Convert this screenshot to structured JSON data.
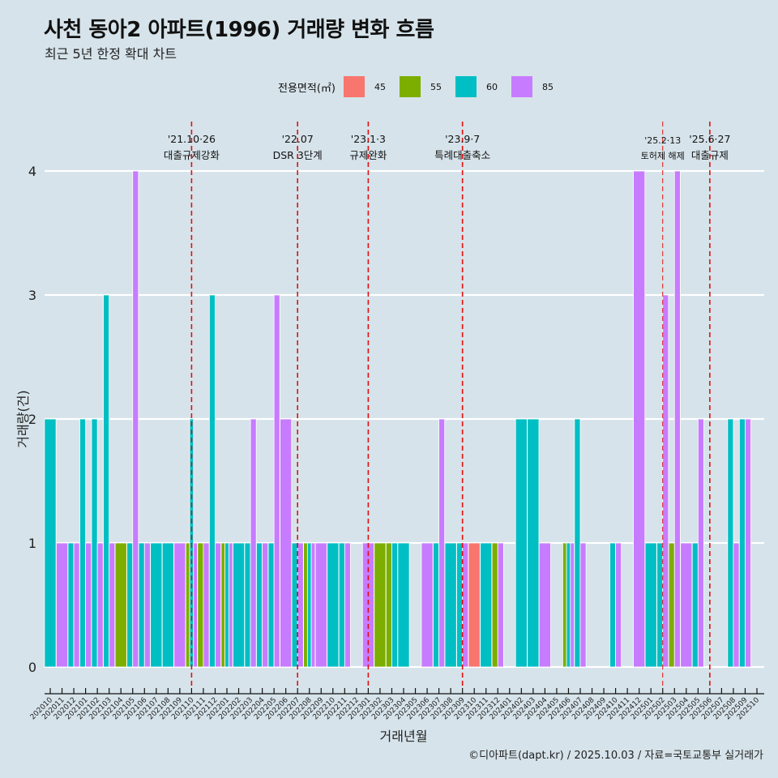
{
  "header": {
    "title": "사천 동아2 아파트(1996) 거래량 변화 흐름",
    "subtitle": "최근 5년 한정 확대 차트"
  },
  "legend": {
    "title": "전용면적(㎡)",
    "items": [
      {
        "label": "45",
        "color": "#F8766D"
      },
      {
        "label": "55",
        "color": "#7CAE00"
      },
      {
        "label": "60",
        "color": "#00BFC4"
      },
      {
        "label": "85",
        "color": "#C77CFF"
      }
    ]
  },
  "footer": "©디아파트(dapt.kr) / 2025.10.03 / 자료=국토교통부 실거래가",
  "chart_data": {
    "type": "bar",
    "position": "dodge",
    "title": "사천 동아2 아파트(1996) 거래량 변화 흐름",
    "subtitle": "최근 5년 한정 확대 차트",
    "xlabel": "거래년월",
    "ylabel": "거래량(건)",
    "ylim": [
      0,
      4
    ],
    "yticks": [
      0,
      1,
      2,
      3,
      4
    ],
    "grid": "horizontal major",
    "legend_position": "top",
    "legend_title": "전용면적(㎡)",
    "categories": [
      "202010",
      "202011",
      "202012",
      "202101",
      "202102",
      "202103",
      "202104",
      "202105",
      "202106",
      "202107",
      "202108",
      "202109",
      "202110",
      "202111",
      "202112",
      "202201",
      "202202",
      "202203",
      "202204",
      "202205",
      "202206",
      "202207",
      "202208",
      "202209",
      "202210",
      "202211",
      "202212",
      "202301",
      "202302",
      "202303",
      "202304",
      "202305",
      "202306",
      "202307",
      "202308",
      "202309",
      "202310",
      "202311",
      "202312",
      "202401",
      "202402",
      "202403",
      "202404",
      "202405",
      "202406",
      "202407",
      "202408",
      "202409",
      "202410",
      "202411",
      "202412",
      "202501",
      "202502",
      "202503",
      "202504",
      "202505",
      "202506",
      "202507",
      "202508",
      "202509",
      "202510"
    ],
    "series": [
      {
        "name": "45",
        "values": [
          0,
          0,
          0,
          0,
          0,
          0,
          0,
          0,
          0,
          0,
          0,
          0,
          0,
          0,
          0,
          0,
          0,
          0,
          0,
          0,
          0,
          0,
          0,
          0,
          0,
          0,
          0,
          0,
          0,
          0,
          0,
          0,
          0,
          0,
          0,
          0,
          1,
          0,
          0,
          0,
          0,
          0,
          0,
          0,
          0,
          0,
          0,
          0,
          0,
          0,
          0,
          0,
          0,
          0,
          0,
          0,
          0,
          0,
          0,
          0,
          0
        ]
      },
      {
        "name": "55",
        "values": [
          0,
          0,
          0,
          0,
          0,
          0,
          1,
          0,
          0,
          0,
          0,
          0,
          1,
          1,
          0,
          1,
          0,
          0,
          0,
          0,
          0,
          0,
          1,
          0,
          0,
          0,
          0,
          0,
          1,
          1,
          0,
          0,
          0,
          0,
          0,
          0,
          0,
          0,
          1,
          0,
          0,
          0,
          0,
          0,
          1,
          0,
          0,
          0,
          0,
          0,
          0,
          0,
          0,
          1,
          0,
          0,
          0,
          0,
          0,
          0,
          0
        ]
      },
      {
        "name": "60",
        "values": [
          2,
          0,
          1,
          2,
          2,
          3,
          0,
          1,
          1,
          1,
          1,
          0,
          2,
          0,
          3,
          1,
          1,
          1,
          1,
          1,
          0,
          1,
          1,
          0,
          1,
          1,
          0,
          0,
          0,
          1,
          1,
          0,
          0,
          1,
          1,
          1,
          0,
          1,
          0,
          0,
          2,
          2,
          0,
          0,
          1,
          2,
          0,
          0,
          1,
          0,
          0,
          1,
          1,
          0,
          0,
          1,
          0,
          0,
          2,
          2,
          0
        ]
      },
      {
        "name": "85",
        "values": [
          0,
          1,
          1,
          1,
          1,
          1,
          0,
          4,
          1,
          0,
          0,
          1,
          1,
          1,
          1,
          1,
          0,
          2,
          1,
          3,
          2,
          1,
          1,
          1,
          0,
          1,
          0,
          1,
          0,
          0,
          0,
          0,
          1,
          2,
          0,
          1,
          0,
          0,
          1,
          0,
          0,
          0,
          1,
          0,
          1,
          1,
          0,
          0,
          1,
          0,
          4,
          0,
          3,
          4,
          1,
          2,
          0,
          0,
          1,
          2,
          0
        ]
      }
    ],
    "annotations": [
      {
        "x": "202110",
        "date": "'21.10·26",
        "label": "대출규제강화",
        "style": "major"
      },
      {
        "x": "202207",
        "date": "'22.07",
        "label": "DSR 3단계",
        "style": "major"
      },
      {
        "x": "202301",
        "date": "'23.1·3",
        "label": "규제완화",
        "style": "major"
      },
      {
        "x": "202309",
        "date": "'23.9·7",
        "label": "특례대출축소",
        "style": "major"
      },
      {
        "x": "202502",
        "date": "'25.2·13",
        "label": "토허제 해제",
        "style": "minor"
      },
      {
        "x": "202506",
        "date": "'25.6·27",
        "label": "대출규제",
        "style": "major"
      }
    ]
  }
}
